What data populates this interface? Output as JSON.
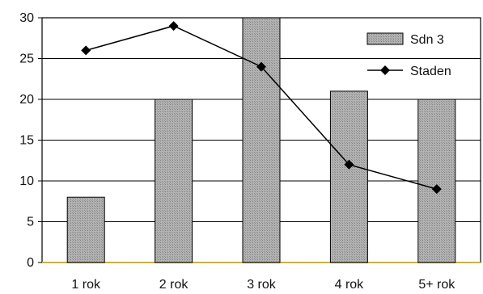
{
  "chart_data": {
    "type": "bar",
    "categories": [
      "1 rok",
      "2 rok",
      "3 rok",
      "4 rok",
      "5+ rok"
    ],
    "series": [
      {
        "name": "Sdn 3",
        "type": "bar",
        "values": [
          8,
          20,
          30,
          21,
          20
        ]
      },
      {
        "name": "Staden",
        "type": "line",
        "values": [
          26,
          29,
          24,
          12,
          9
        ]
      }
    ],
    "ylim": [
      0,
      30
    ],
    "yticks": [
      0,
      5,
      10,
      15,
      20,
      25,
      30
    ],
    "grid": true,
    "legend": "top-right",
    "colors": {
      "bar_fill": "#a9a9a9",
      "line": "#000000",
      "axis": "#c9b24a"
    }
  }
}
